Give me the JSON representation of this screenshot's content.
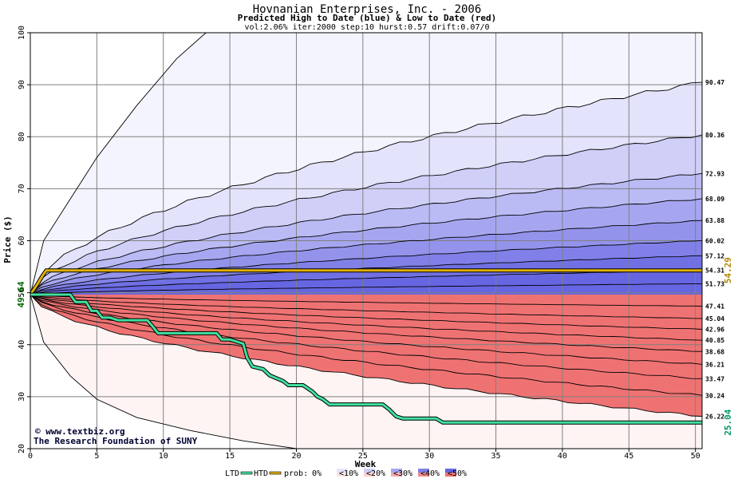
{
  "chart_data": {
    "type": "area",
    "title": "Hovnanian Enterprises, Inc. - 2006",
    "subtitle": "Predicted High to Date (blue) &  Low to Date (red)",
    "params": "vol:2.06% iter:2000 step:10 hurst:0.57 drift:0.07/0",
    "xlabel": "Week",
    "ylabel": "Price ($)",
    "xlim": [
      0,
      50.5
    ],
    "ylim": [
      20,
      100
    ],
    "x_ticks": [
      0,
      5,
      10,
      15,
      20,
      25,
      30,
      35,
      40,
      45,
      50
    ],
    "y_ticks": [
      20,
      30,
      40,
      50,
      60,
      70,
      80,
      90,
      100
    ],
    "grid": true,
    "start_price": 49.64,
    "start_label": "49.64",
    "high_bands_final": [
      90.47,
      80.36,
      72.93,
      68.09,
      63.88,
      60.02,
      57.12,
      54.31,
      51.73
    ],
    "high_labels": [
      "90.47",
      "80.36",
      "72.93",
      "68.09",
      "63.88",
      "60.02",
      "57.12",
      "54.31",
      "51.73"
    ],
    "low_bands_final": [
      47.41,
      45.04,
      42.96,
      40.85,
      38.68,
      36.21,
      33.47,
      30.24,
      26.22
    ],
    "low_labels": [
      "47.41",
      "45.04",
      "42.96",
      "40.85",
      "38.68",
      "36.21",
      "33.47",
      "30.24",
      "26.22"
    ],
    "outer_high": {
      "x": [
        0,
        1,
        3,
        5,
        8,
        11,
        13.2
      ],
      "y": [
        49.64,
        60,
        68,
        76,
        86,
        95,
        100
      ]
    },
    "outer_low": {
      "x": [
        0,
        1,
        3,
        5,
        8,
        12,
        16,
        20
      ],
      "y": [
        49.64,
        40.5,
        34,
        29.5,
        26,
        23.5,
        21.5,
        20
      ]
    },
    "htd_final": 54.29,
    "htd_final_label": "54.29",
    "htd": {
      "x": [
        0,
        0.5,
        0.9,
        1.2,
        50.5
      ],
      "y": [
        49.64,
        51.5,
        53.2,
        54.29,
        54.29
      ]
    },
    "ltd_final": 25.04,
    "ltd_final_label": "25.04",
    "ltd": {
      "x": [
        0,
        3,
        3.4,
        4.2,
        4.6,
        5,
        5.4,
        6,
        6.6,
        8.8,
        9.2,
        9.6,
        14,
        14.4,
        15,
        16,
        16.3,
        16.7,
        17.5,
        18,
        19,
        19.4,
        20.5,
        21.2,
        21.6,
        22,
        22.5,
        26.5,
        27,
        27.5,
        28,
        30.5,
        31,
        50.5
      ],
      "y": [
        49.64,
        49.64,
        48.2,
        48.2,
        46.5,
        46.5,
        45.2,
        45.2,
        44.7,
        44.7,
        43.5,
        42.2,
        42.2,
        41,
        41,
        40.2,
        37.5,
        35.8,
        35.3,
        34.1,
        33,
        32.2,
        32.2,
        31,
        30,
        29.5,
        28.5,
        28.5,
        27.5,
        26.2,
        25.8,
        25.8,
        25.04,
        25.04
      ]
    },
    "band_colors": {
      "high": [
        "#f4f4fe",
        "#e3e3fb",
        "#cfcff8",
        "#babaf4",
        "#a6a6f0",
        "#9393ec",
        "#8080e8",
        "#7070e4",
        "#6666e2"
      ],
      "low": [
        "#fef4f4",
        "#fce4e4",
        "#fbd2d2",
        "#f9c0c0",
        "#f7aeae",
        "#f59c9c",
        "#f38e8e",
        "#f17e7e",
        "#ef7272"
      ],
      "htd_line": "#e0b000",
      "ltd_line": "#40e0a0",
      "start_label": "#006600",
      "htd_label": "#b08800",
      "ltd_label": "#009966"
    }
  },
  "credits": {
    "line1": "© www.textbiz.org",
    "line2": "The Research Foundation of SUNY"
  },
  "legend": {
    "ltd": "LTD",
    "htd": "HTD",
    "prob": "prob:",
    "items": [
      "0%",
      "<10%",
      "<20%",
      "<30%",
      "<40%",
      "<50%"
    ]
  }
}
